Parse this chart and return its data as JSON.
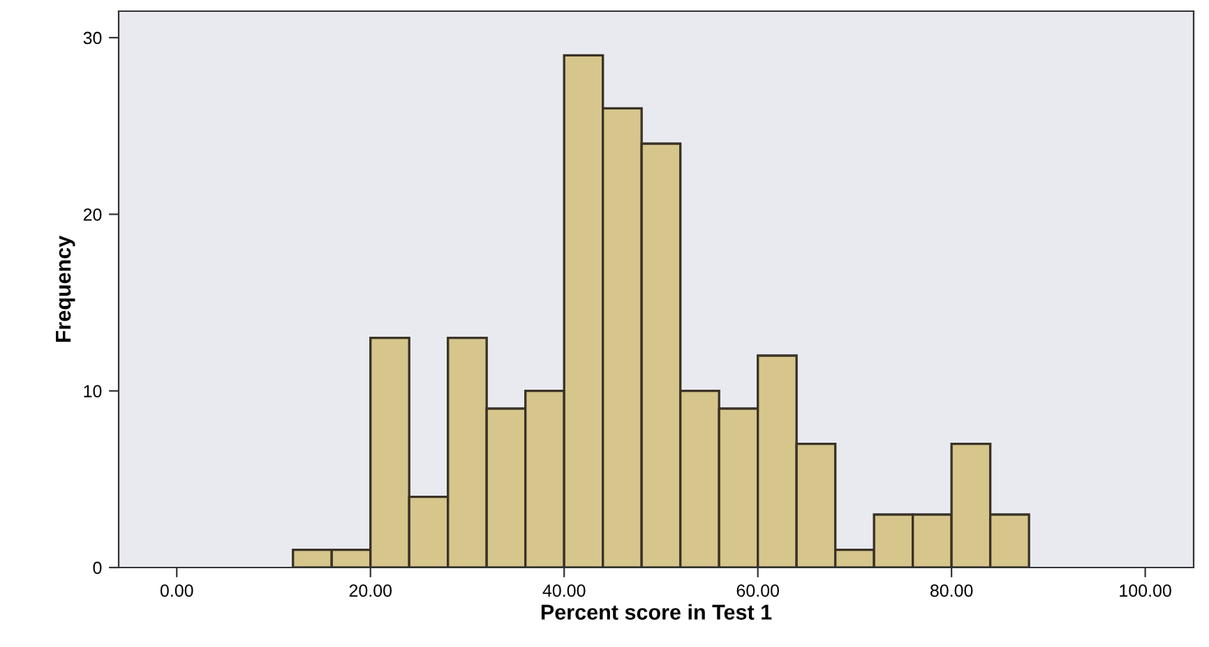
{
  "chart_data": {
    "type": "histogram",
    "xlabel": "Percent score in Test 1",
    "ylabel": "Frequency",
    "bins": [
      12,
      16,
      20,
      24,
      28,
      32,
      36,
      40,
      44,
      48,
      52,
      56,
      60,
      64,
      68,
      72,
      76,
      80,
      84,
      88
    ],
    "values": [
      1,
      1,
      13,
      4,
      13,
      9,
      10,
      29,
      26,
      24,
      10,
      9,
      12,
      7,
      1,
      3,
      3,
      7,
      3
    ],
    "color": "#d6c68c",
    "xlim": [
      -6,
      105
    ],
    "ylim": [
      0,
      31.5
    ],
    "xticks": [
      {
        "value": 0,
        "label": "0.00"
      },
      {
        "value": 20,
        "label": "20.00"
      },
      {
        "value": 40,
        "label": "40.00"
      },
      {
        "value": 60,
        "label": "60.00"
      },
      {
        "value": 80,
        "label": "80.00"
      },
      {
        "value": 100,
        "label": "100.00"
      }
    ],
    "yticks": [
      0,
      10,
      20,
      30
    ],
    "grid": false
  }
}
